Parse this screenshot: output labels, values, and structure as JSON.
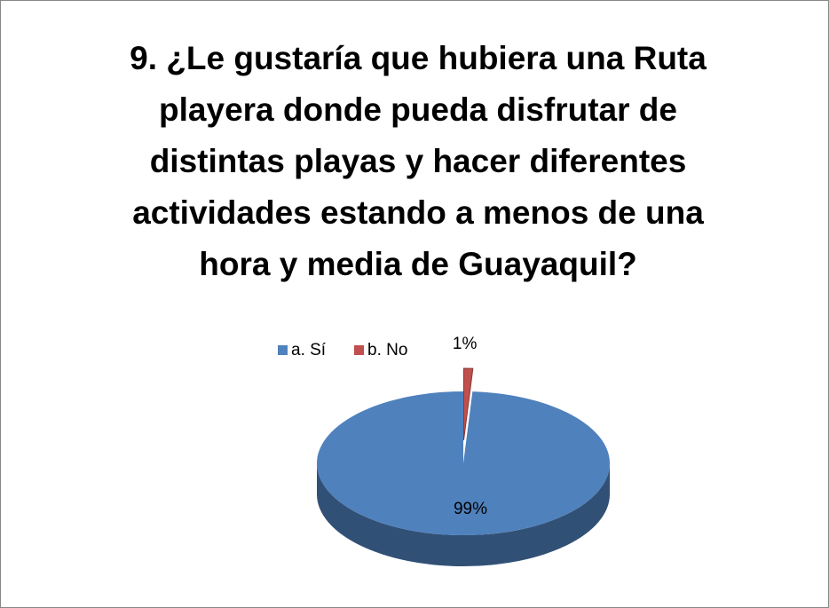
{
  "chart_data": {
    "type": "pie",
    "title": "9. ¿Le gustaría que hubiera una Ruta playera donde pueda disfrutar de distintas playas y hacer diferentes actividades estando a menos de una hora y media de Guayaquil?",
    "categories": [
      "a. Sí",
      "b. No"
    ],
    "values": [
      99,
      1
    ],
    "value_labels": [
      "99%",
      "1%"
    ],
    "colors": [
      "#4f81bd",
      "#c0504d"
    ],
    "legend": "top"
  }
}
